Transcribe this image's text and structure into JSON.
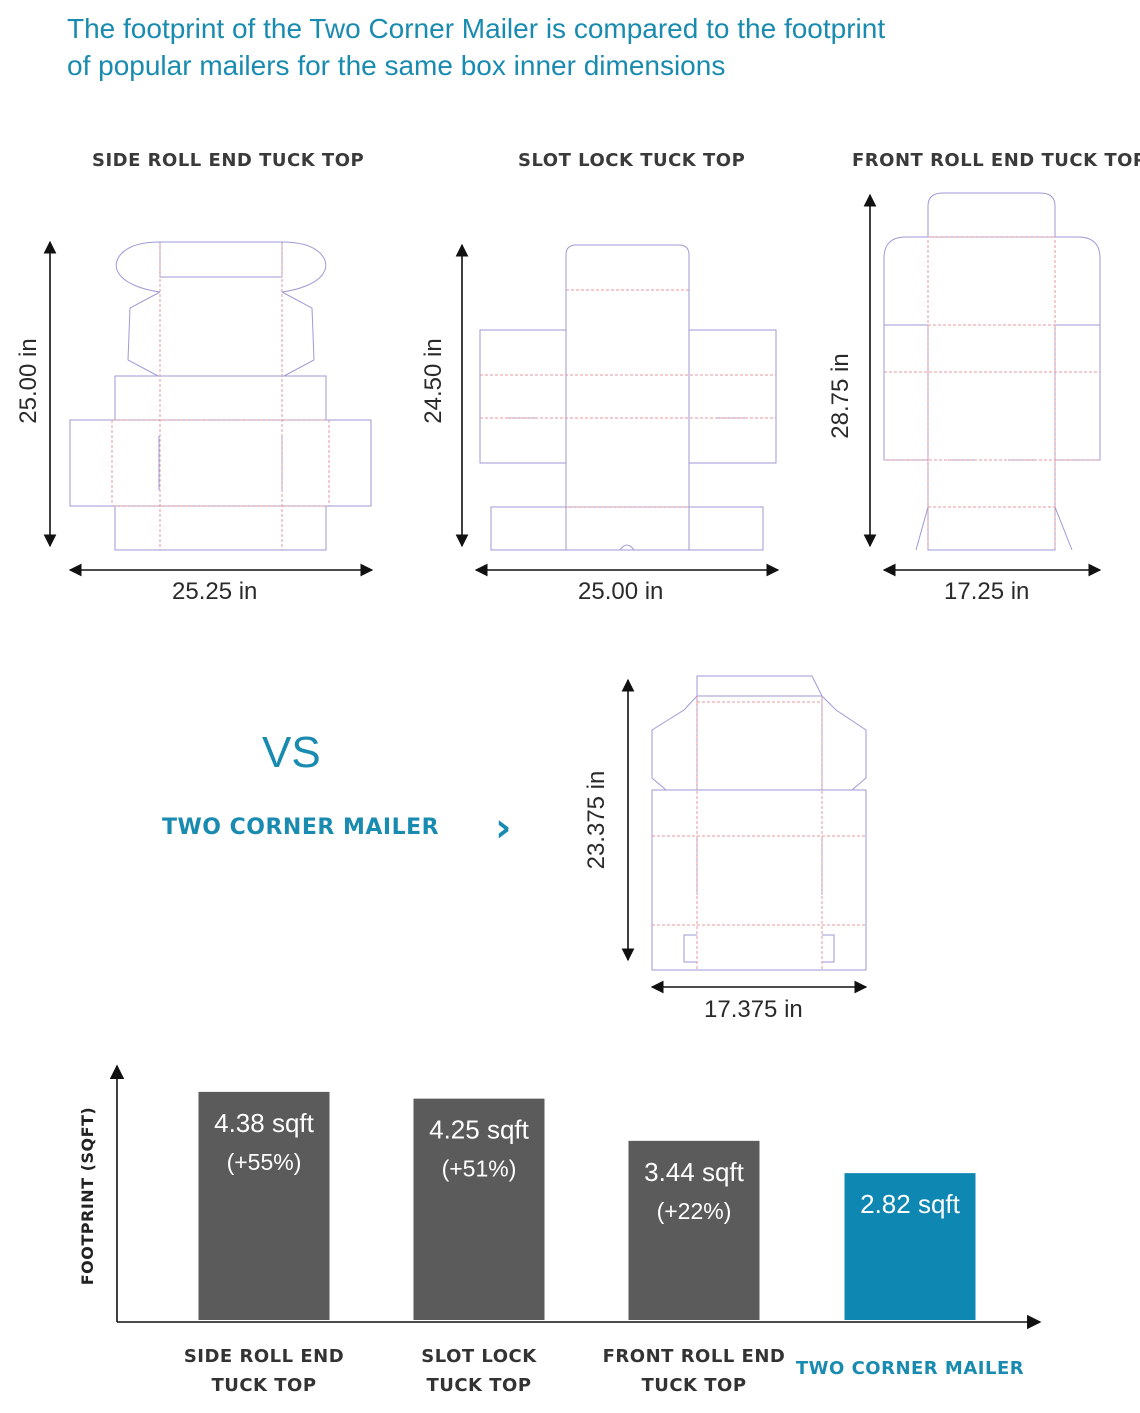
{
  "headline": {
    "line1": "The footprint of the Two Corner Mailer is compared to the footprint",
    "line2": "of popular mailers for the same box inner dimensions"
  },
  "colors": {
    "accent": "#1a8bb0",
    "bar_dark": "#5b5b5b",
    "bar_accent": "#0f87b3",
    "dieline_outline": "#9e9ad6",
    "dieline_fold": "#e79aa0"
  },
  "mailers": [
    {
      "title": "SIDE ROLL END TUCK TOP",
      "height_label": "25.00 in",
      "width_label": "25.25 in"
    },
    {
      "title": "SLOT LOCK TUCK TOP",
      "height_label": "24.50 in",
      "width_label": "25.00 in"
    },
    {
      "title": "FRONT ROLL END TUCK TOP",
      "height_label": "28.75 in",
      "width_label": "17.25 in"
    }
  ],
  "comparison": {
    "vs": "VS",
    "label": "TWO CORNER MAILER",
    "arrow_icon": "chevron-right-icon",
    "height_label": "23.375 in",
    "width_label": "17.375 in"
  },
  "chart_data": {
    "type": "bar",
    "ylabel": "FOOTPRINT (SQFT)",
    "xlabel": "",
    "categories": [
      [
        "SIDE ROLL END",
        "TUCK TOP"
      ],
      [
        "SLOT LOCK",
        "TUCK TOP"
      ],
      [
        "FRONT ROLL END",
        "TUCK TOP"
      ],
      [
        "TWO CORNER MAILER"
      ]
    ],
    "values": [
      4.38,
      4.25,
      3.44,
      2.82
    ],
    "value_labels": [
      "4.38 sqft",
      "4.25 sqft",
      "3.44 sqft",
      "2.82 sqft"
    ],
    "percent_labels": [
      "(+55%)",
      "(+51%)",
      "(+22%)",
      ""
    ],
    "highlight_index": 3,
    "ylim": [
      0,
      4.8
    ],
    "grid": false
  }
}
